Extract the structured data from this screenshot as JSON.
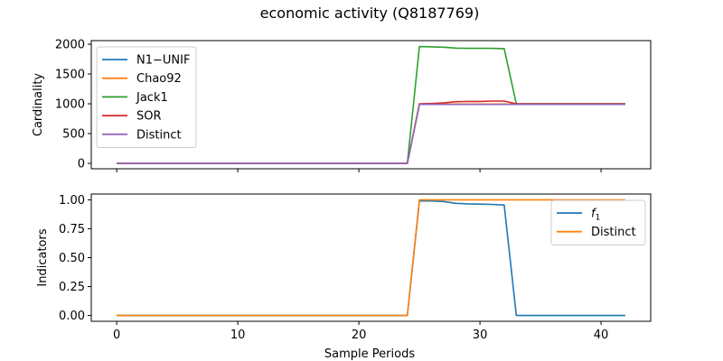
{
  "chart_data": {
    "type": "line",
    "title": "economic activity (Q8187769)",
    "xlabel": "Sample Periods",
    "x_ticks": [
      "0",
      "10",
      "20",
      "30",
      "40"
    ],
    "panels": [
      {
        "ylabel": "Cardinality",
        "ylim": [
          -90,
          2060
        ],
        "y_ticks": [
          "0",
          "500",
          "1000",
          "1500",
          "2000"
        ],
        "legend_position": "upper-left",
        "series": [
          {
            "name": "N1−UNIF",
            "color": "#1f77b4",
            "x": [
              0,
              24,
              25,
              33,
              42
            ],
            "y": [
              0,
              0,
              990,
              990,
              990
            ]
          },
          {
            "name": "Chao92",
            "color": "#ff7f0e",
            "x": [
              0,
              24,
              25,
              33,
              42
            ],
            "y": [
              0,
              0,
              995,
              995,
              995
            ]
          },
          {
            "name": "Jack1",
            "color": "#2ca02c",
            "x": [
              0,
              24,
              25,
              26,
              27,
              28,
              29,
              30,
              31,
              32,
              33,
              42
            ],
            "y": [
              0,
              0,
              1960,
              1955,
              1950,
              1935,
              1930,
              1930,
              1930,
              1925,
              1000,
              1000
            ]
          },
          {
            "name": "SOR",
            "color": "#d62728",
            "x": [
              0,
              24,
              25,
              26,
              27,
              28,
              29,
              30,
              31,
              32,
              33,
              42
            ],
            "y": [
              0,
              0,
              1000,
              1005,
              1015,
              1035,
              1040,
              1040,
              1045,
              1045,
              1000,
              1000
            ]
          },
          {
            "name": "Distinct",
            "color": "#9467bd",
            "x": [
              0,
              24,
              25,
              33,
              42
            ],
            "y": [
              0,
              0,
              990,
              990,
              990
            ]
          }
        ]
      },
      {
        "ylabel": "Indicators",
        "ylim": [
          -0.05,
          1.05
        ],
        "y_ticks": [
          "0.00",
          "0.25",
          "0.50",
          "0.75",
          "1.00"
        ],
        "legend_position": "upper-right",
        "series": [
          {
            "name": "f1",
            "color": "#1f77b4",
            "x": [
              0,
              24,
              25,
              26,
              27,
              28,
              29,
              30,
              31,
              32,
              33,
              42
            ],
            "y": [
              0,
              0,
              0.99,
              0.99,
              0.985,
              0.97,
              0.965,
              0.963,
              0.96,
              0.955,
              0,
              0
            ]
          },
          {
            "name": "Distinct",
            "color": "#ff7f0e",
            "x": [
              0,
              24,
              25,
              42
            ],
            "y": [
              0,
              0,
              1.0,
              1.0
            ]
          }
        ]
      }
    ]
  }
}
